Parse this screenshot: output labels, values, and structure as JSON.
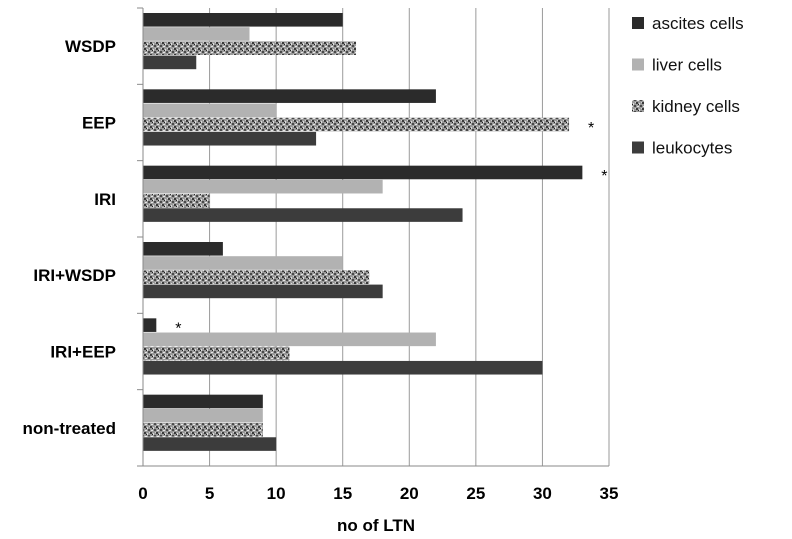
{
  "chart_data": {
    "type": "bar",
    "orientation": "horizontal",
    "categories": [
      "WSDP",
      "EEP",
      "IRI",
      "IRI+WSDP",
      "IRI+EEP",
      "non-treated"
    ],
    "series": [
      {
        "name": "ascites cells",
        "values": [
          15,
          22,
          33,
          6,
          1,
          9
        ],
        "color": "#2b2b2b",
        "pattern": "solid"
      },
      {
        "name": "liver cells",
        "values": [
          8,
          10,
          18,
          15,
          22,
          9
        ],
        "color": "#b2b2b2",
        "pattern": "solid"
      },
      {
        "name": "kidney cells",
        "values": [
          16,
          32,
          5,
          17,
          11,
          9
        ],
        "color": "#8c8c8c",
        "pattern": "speckled"
      },
      {
        "name": "leukocytes",
        "values": [
          4,
          13,
          24,
          18,
          30,
          10
        ],
        "color": "#3c3c3c",
        "pattern": "solid"
      }
    ],
    "significance": [
      {
        "category": "EEP",
        "series": "kidney cells",
        "mark": "*"
      },
      {
        "category": "IRI",
        "series": "ascites cells",
        "mark": "*"
      },
      {
        "category": "IRI+EEP",
        "series": "ascites cells",
        "mark": "*"
      }
    ],
    "xlabel": "no of LTN",
    "ylabel": "",
    "xlim": [
      0,
      35
    ],
    "xticks": [
      0,
      5,
      10,
      15,
      20,
      25,
      30,
      35
    ],
    "grid": "vertical major gridlines",
    "legend_position": "top-right"
  }
}
